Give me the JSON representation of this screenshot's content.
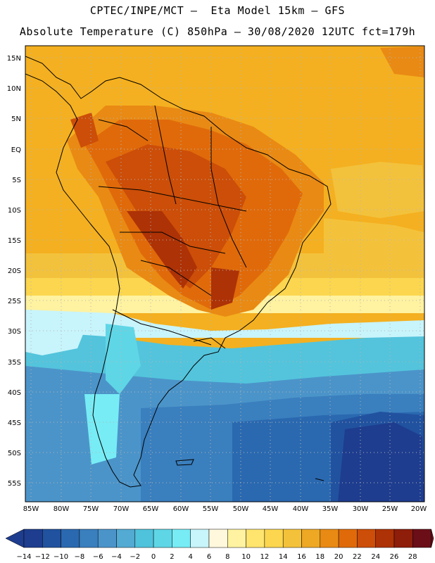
{
  "header": {
    "line1": "CPTEC/INPE/MCT –  Eta Model 15km – GFS",
    "line2": "Absolute Temperature (C) 850hPa – 30/08/2020 12UTC fct=179h"
  },
  "map": {
    "region": "South America",
    "variable": "Absolute Temperature (C) 850hPa",
    "lat_labels": [
      "15N",
      "10N",
      "5N",
      "EQ",
      "5S",
      "10S",
      "15S",
      "20S",
      "25S",
      "30S",
      "35S",
      "40S",
      "45S",
      "50S",
      "55S"
    ],
    "lon_labels": [
      "85W",
      "80W",
      "75W",
      "70W",
      "65W",
      "60W",
      "55W",
      "50W",
      "45W",
      "40W",
      "35W",
      "30W",
      "25W",
      "20W"
    ]
  },
  "colorbar": {
    "labels": [
      "-14",
      "-12",
      "-10",
      "-8",
      "-6",
      "-4",
      "-2",
      "0",
      "2",
      "4",
      "6",
      "8",
      "10",
      "12",
      "14",
      "16",
      "18",
      "20",
      "22",
      "24",
      "26",
      "28"
    ],
    "colors": [
      "#1e3d8f",
      "#2152a0",
      "#2a69b0",
      "#3a7fbe",
      "#4b94c9",
      "#53aad3",
      "#4fc2dc",
      "#5fd6e6",
      "#77ecf5",
      "#c8f4fb",
      "#fff8dc",
      "#fff2a0",
      "#ffe56e",
      "#fbd64e",
      "#f4c23a",
      "#eea824",
      "#e98a14",
      "#e06a0a",
      "#cc4e08",
      "#ad3206",
      "#8e1d0a",
      "#6b0e18"
    ],
    "under_color": "#1e3d8f",
    "over_color": "#6b0e18"
  }
}
